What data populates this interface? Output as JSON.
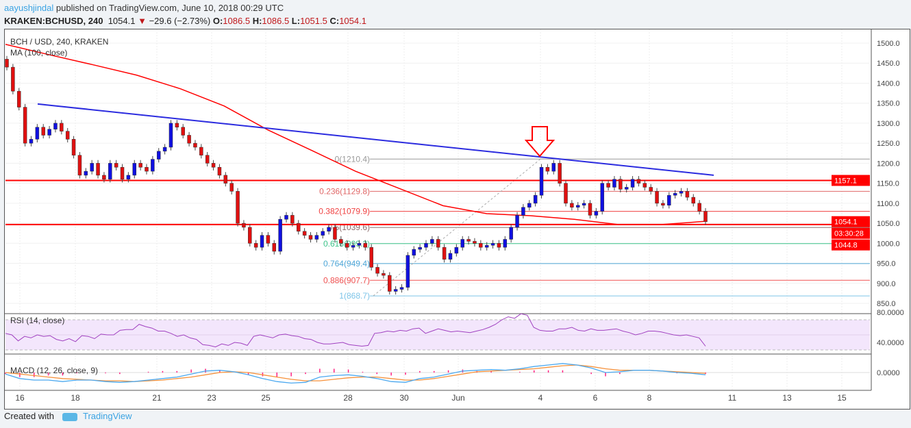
{
  "header": {
    "author": "aayushjindal",
    "published": " published on TradingView.com, June 10, 2018 00:29 UTC",
    "symbol": "KRAKEN:BCHUSD, 240",
    "last": "1054.1",
    "change": "−29.6 (−2.73%)",
    "open_label": "O:",
    "open": "1086.5",
    "high_label": "H:",
    "high": "1086.5",
    "low_label": "L:",
    "low": "1051.5",
    "close_label": "C:",
    "close": "1054.1"
  },
  "chart_data": {
    "type": "candlestick",
    "title": "BCH / USD, 240, KRAKEN",
    "ma_label": "MA (100, close)",
    "ylim": [
      830,
      1520
    ],
    "price_ticks": [
      "1500.0",
      "1450.0",
      "1400.0",
      "1350.0",
      "1300.0",
      "1250.0",
      "1200.0",
      "1150.0",
      "1100.0",
      "1050.0",
      "1000.0",
      "950.0",
      "900.0",
      "850.0"
    ],
    "x_ticks": [
      "16",
      "18",
      "21",
      "23",
      "25",
      "28",
      "30",
      "Jun",
      "4",
      "6",
      "8",
      "11",
      "13",
      "15"
    ],
    "closes": [
      1440,
      1380,
      1340,
      1250,
      1260,
      1290,
      1270,
      1285,
      1300,
      1280,
      1260,
      1220,
      1170,
      1180,
      1200,
      1170,
      1160,
      1200,
      1190,
      1160,
      1170,
      1200,
      1190,
      1180,
      1210,
      1230,
      1240,
      1300,
      1290,
      1270,
      1250,
      1240,
      1220,
      1200,
      1190,
      1170,
      1150,
      1130,
      1050,
      1040,
      1000,
      990,
      1020,
      1000,
      980,
      1060,
      1070,
      1050,
      1030,
      1020,
      1010,
      1020,
      1030,
      1040,
      1010,
      1000,
      990,
      995,
      1000,
      990,
      940,
      925,
      920,
      880,
      885,
      890,
      970,
      985,
      990,
      1000,
      1010,
      990,
      960,
      975,
      990,
      1010,
      1005,
      1000,
      990,
      995,
      1000,
      990,
      1010,
      1040,
      1070,
      1090,
      1100,
      1120,
      1190,
      1180,
      1200,
      1150,
      1100,
      1090,
      1095,
      1100,
      1070,
      1080,
      1150,
      1140,
      1160,
      1135,
      1140,
      1160,
      1150,
      1140,
      1130,
      1100,
      1095,
      1120,
      1125,
      1130,
      1115,
      1100,
      1080,
      1054
    ],
    "ma100": [
      1497,
      1471,
      1446,
      1420,
      1386,
      1343,
      1283,
      1232,
      1180,
      1137,
      1094,
      1074,
      1069,
      1060,
      1047,
      1047,
      1055
    ],
    "trendline": {
      "from": 1348,
      "to": 1170,
      "color": "#2b2bdf"
    },
    "horizontal_levels": [
      {
        "value": 1157.1,
        "label": "1157.1"
      },
      {
        "value": 1047,
        "label": ""
      }
    ],
    "price_tags": [
      {
        "label": "1157.1",
        "value": 1157.1
      },
      {
        "label": "1054.1",
        "value": 1054.1
      },
      {
        "label": "03:30:28",
        "value": 1036
      },
      {
        "label": "1044.8",
        "value": 1000
      }
    ],
    "fibonacci": [
      {
        "label": "0(1210.4)",
        "value": 1210.4,
        "color": "#999999"
      },
      {
        "label": "0.236(1129.8)",
        "value": 1129.8,
        "color": "#e06666"
      },
      {
        "label": "0.382(1079.9)",
        "value": 1079.9,
        "color": "#f04040"
      },
      {
        "label": "0.5(1039.6)",
        "value": 1039.6,
        "color": "#8a6a6a"
      },
      {
        "label": "0.618(999.2)",
        "value": 999.2,
        "color": "#3cc48a"
      },
      {
        "label": "0.764(949.4)",
        "value": 949.4,
        "color": "#4da6d8"
      },
      {
        "label": "0.886(907.7)",
        "value": 907.7,
        "color": "#f05050"
      },
      {
        "label": "1(868.7)",
        "value": 868.7,
        "color": "#7cc4e8"
      }
    ],
    "rsi": {
      "label": "RSI (14, close)",
      "ticks": [
        "80.0000",
        "40.0000"
      ],
      "values": [
        52,
        50,
        42,
        48,
        46,
        50,
        48,
        49,
        44,
        42,
        45,
        41,
        49,
        48,
        45,
        51,
        50,
        50,
        56,
        57,
        57,
        64,
        61,
        59,
        55,
        55,
        52,
        48,
        50,
        46,
        44,
        37,
        36,
        34,
        38,
        36,
        40,
        39,
        36,
        48,
        50,
        48,
        46,
        50,
        51,
        49,
        48,
        45,
        44,
        40,
        38,
        38,
        39,
        40,
        37,
        36,
        35,
        36,
        52,
        53,
        55,
        54,
        56,
        55,
        58,
        59,
        52,
        55,
        58,
        56,
        54,
        55,
        54,
        53,
        55,
        57,
        60,
        64,
        70,
        74,
        72,
        78,
        76,
        60,
        56,
        55,
        55,
        58,
        58,
        60,
        56,
        55,
        58,
        56,
        56,
        57,
        58,
        55,
        53,
        50,
        52,
        55,
        55,
        54,
        52,
        50,
        49,
        50,
        48,
        46,
        35
      ]
    },
    "macd": {
      "label": "MACD (12, 26, close, 9)",
      "ticks": [
        "0.0000"
      ],
      "macd": [
        -2,
        -8,
        -10,
        -10,
        -12,
        -10,
        -10,
        -12,
        -13,
        -12,
        -10,
        -8,
        -6,
        -2,
        2,
        3,
        1,
        -3,
        -8,
        -12,
        -14,
        -13,
        -6,
        -4,
        -3,
        -5,
        -8,
        -12,
        -13,
        -8,
        -6,
        -2,
        2,
        3,
        4,
        3,
        5,
        8,
        10,
        12,
        10,
        6,
        0,
        1,
        3,
        3,
        2,
        0,
        -1,
        -3
      ],
      "signal": [
        0,
        -2,
        -4,
        -6,
        -8,
        -9,
        -10,
        -11,
        -11,
        -12,
        -11,
        -10,
        -8,
        -6,
        -3,
        0,
        1,
        0,
        -3,
        -6,
        -9,
        -11,
        -11,
        -9,
        -7,
        -6,
        -6,
        -8,
        -10,
        -10,
        -8,
        -5,
        -2,
        1,
        2,
        3,
        4,
        5,
        7,
        9,
        10,
        8,
        5,
        3,
        3,
        3,
        2,
        1,
        0,
        -1
      ],
      "hist": [
        -2,
        -6,
        -6,
        -4,
        -4,
        -1,
        0,
        -1,
        -2,
        0,
        1,
        2,
        2,
        4,
        5,
        3,
        0,
        -3,
        -5,
        -6,
        -5,
        -2,
        5,
        5,
        4,
        1,
        -2,
        -4,
        -3,
        2,
        2,
        3,
        4,
        2,
        2,
        0,
        1,
        3,
        3,
        3,
        0,
        -2,
        -5,
        -2,
        0,
        0,
        0,
        -1,
        -1,
        -2
      ]
    }
  },
  "footer": {
    "created": "Created with",
    "brand": "TradingView"
  }
}
